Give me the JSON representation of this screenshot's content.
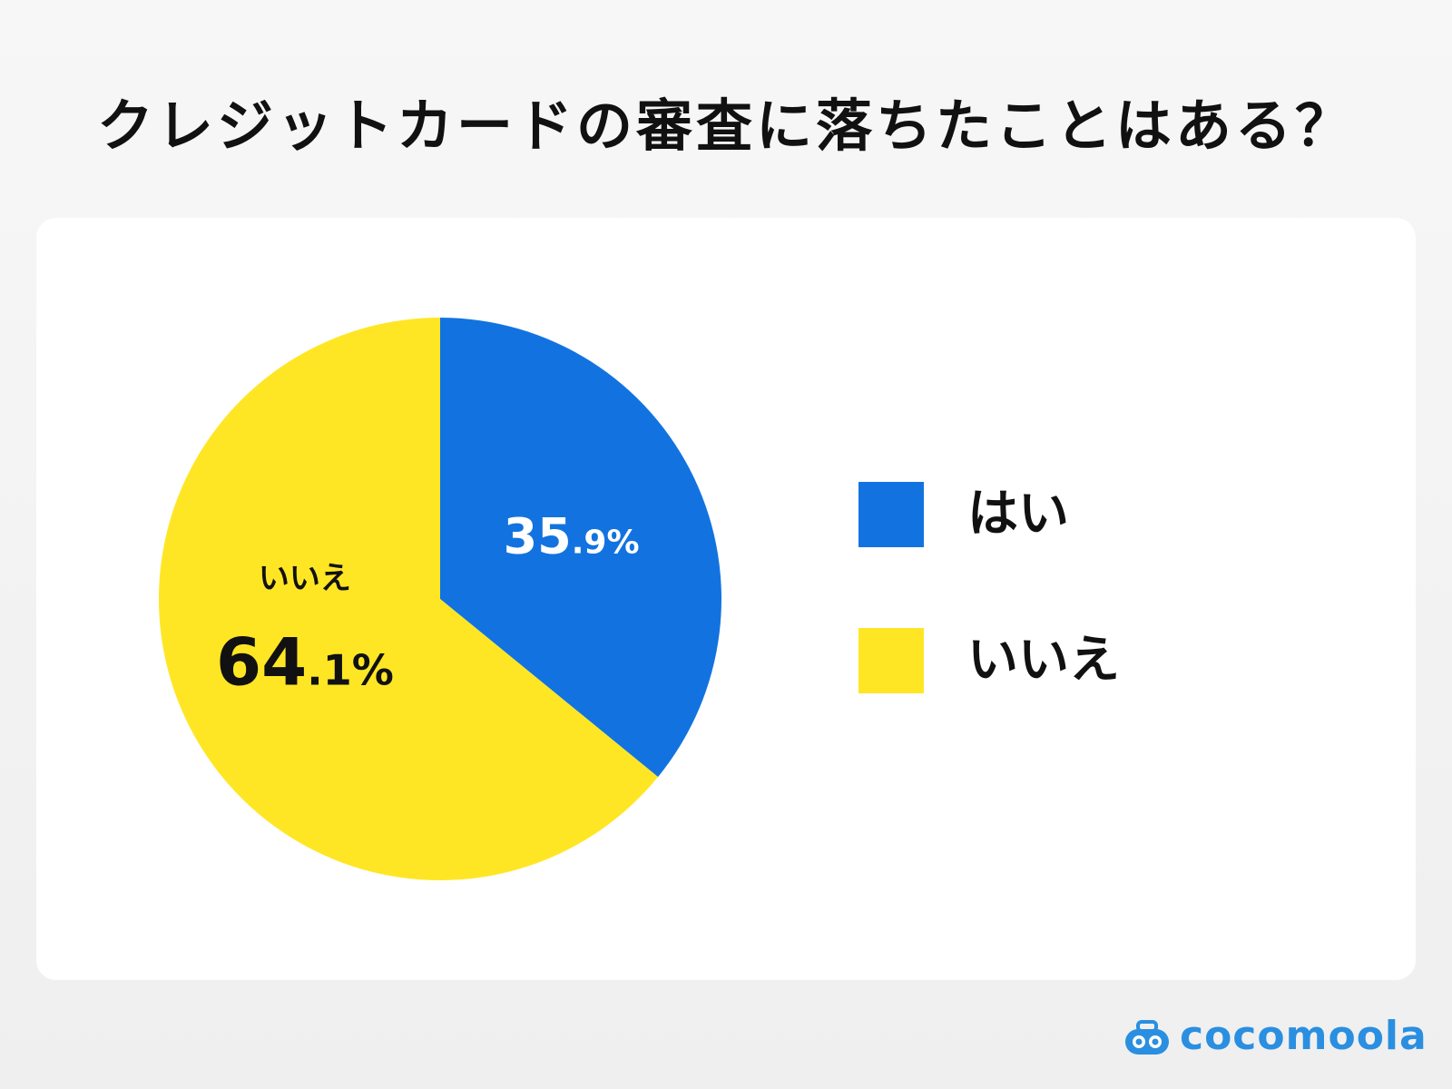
{
  "chart_data": {
    "type": "pie",
    "title": "クレジットカードの審査に落ちたことはある？",
    "slices": [
      {
        "label": "はい",
        "value": 35.9,
        "value_main": "35",
        "value_decimal": ".9",
        "unit": "%",
        "color": "#1273e0"
      },
      {
        "label": "いいえ",
        "value": 64.1,
        "value_main": "64",
        "value_decimal": ".1",
        "unit": "%",
        "color": "#ffe624"
      }
    ],
    "legend": "right"
  },
  "brand": {
    "name": "cocomoola",
    "color": "#2a8fe0"
  }
}
